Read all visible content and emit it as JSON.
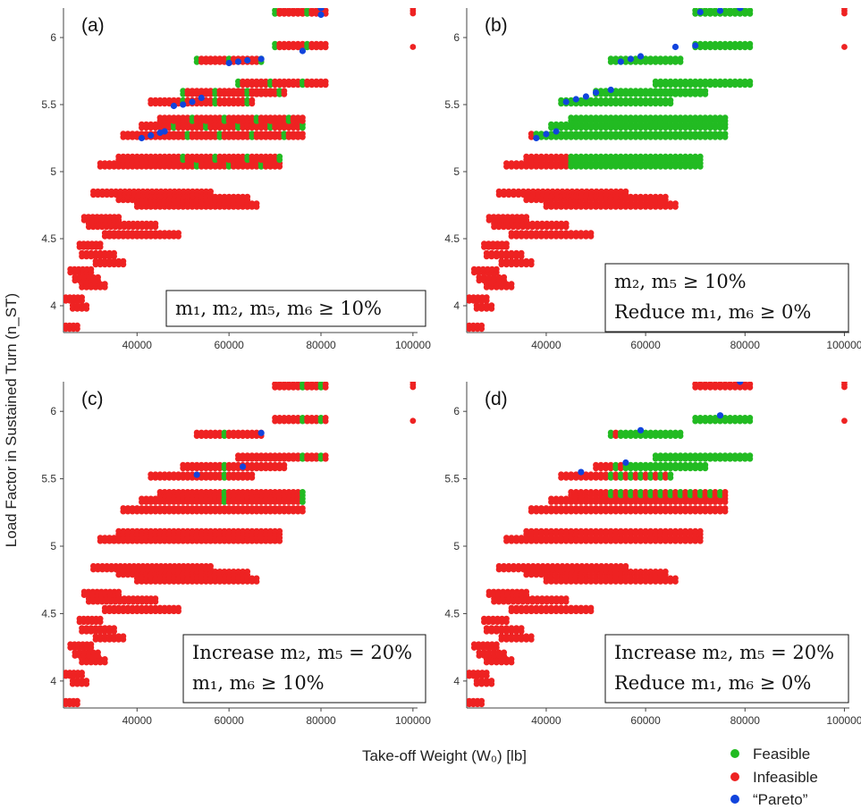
{
  "ylabel": "Load Factor in Sustained Turn (n_ST)",
  "xlabel": "Take-off Weight (W₀) [lb]",
  "legend": [
    {
      "label": "Feasible",
      "color": "#22bb22"
    },
    {
      "label": "Infeasible",
      "color": "#ee2222"
    },
    {
      "label": "“Pareto”",
      "color": "#1144dd"
    }
  ],
  "chart_data": [
    {
      "type": "scatter",
      "panel": "(a)",
      "annotation": [
        "m₁, m₂, m₅, m₆ ≥ 10%"
      ],
      "xlim": [
        24000,
        101000
      ],
      "ylim": [
        3.8,
        6.22
      ],
      "xticks": [
        40000,
        60000,
        80000,
        100000
      ],
      "yticks": [
        4,
        4.5,
        5,
        5.5,
        6
      ],
      "feasible_x_ranges": [
        [
          50000,
          72000
        ],
        [
          48000,
          72000
        ],
        [
          55000,
          76000
        ],
        [
          62000,
          72000
        ],
        [
          76000,
          80000
        ]
      ],
      "pareto": [
        [
          41000,
          5.25
        ],
        [
          43000,
          5.27
        ],
        [
          45000,
          5.29
        ],
        [
          46000,
          5.3
        ],
        [
          48000,
          5.49
        ],
        [
          50000,
          5.5
        ],
        [
          52000,
          5.52
        ],
        [
          54000,
          5.55
        ],
        [
          60000,
          5.81
        ],
        [
          62000,
          5.82
        ],
        [
          64000,
          5.83
        ],
        [
          67000,
          5.84
        ],
        [
          76000,
          5.9
        ],
        [
          80000,
          6.17
        ],
        [
          80000,
          6.22
        ]
      ]
    },
    {
      "type": "scatter",
      "panel": "(b)",
      "annotation": [
        "m₂, m₅ ≥ 10%",
        "Reduce m₁, m₆ ≥ 0%"
      ],
      "xlim": [
        24000,
        101000
      ],
      "ylim": [
        3.8,
        6.22
      ],
      "xticks": [
        40000,
        60000,
        80000,
        100000
      ],
      "yticks": [
        4,
        4.5,
        5,
        5.5,
        6
      ],
      "feasible_x_ranges": [
        [
          38000,
          77000
        ],
        [
          42000,
          77000
        ],
        [
          45000,
          80000
        ],
        [
          49000,
          80000
        ],
        [
          54000,
          80000
        ],
        [
          70000,
          81000
        ]
      ],
      "pareto": [
        [
          38000,
          5.25
        ],
        [
          40000,
          5.28
        ],
        [
          42000,
          5.3
        ],
        [
          44000,
          5.52
        ],
        [
          46000,
          5.54
        ],
        [
          48000,
          5.56
        ],
        [
          50000,
          5.59
        ],
        [
          53000,
          5.61
        ],
        [
          55000,
          5.82
        ],
        [
          57000,
          5.84
        ],
        [
          59000,
          5.86
        ],
        [
          66000,
          5.93
        ],
        [
          70000,
          5.94
        ],
        [
          71000,
          6.19
        ],
        [
          75000,
          6.2
        ],
        [
          79000,
          6.22
        ]
      ]
    },
    {
      "type": "scatter",
      "panel": "(c)",
      "annotation": [
        "Increase m₂, m₅ = 20%",
        "m₁, m₆ ≥ 10%"
      ],
      "xlim": [
        24000,
        101000
      ],
      "ylim": [
        3.8,
        6.22
      ],
      "xticks": [
        40000,
        60000,
        80000,
        100000
      ],
      "yticks": [
        4,
        4.5,
        5,
        5.5,
        6
      ],
      "feasible_x_ranges": [
        [
          59000,
          60000
        ],
        [
          76000,
          77000
        ],
        [
          80000,
          81000
        ]
      ],
      "pareto": [
        [
          53000,
          5.53
        ],
        [
          63000,
          5.59
        ],
        [
          67000,
          5.84
        ]
      ]
    },
    {
      "type": "scatter",
      "panel": "(d)",
      "annotation": [
        "Increase m₂, m₅ = 20%",
        "Reduce m₁, m₆ ≥ 0%"
      ],
      "xlim": [
        24000,
        101000
      ],
      "ylim": [
        3.8,
        6.22
      ],
      "xticks": [
        40000,
        60000,
        80000,
        100000
      ],
      "yticks": [
        4,
        4.5,
        5,
        5.5,
        6
      ],
      "feasible_x_ranges": [
        [
          47000,
          53000
        ],
        [
          53000,
          77000
        ],
        [
          56000,
          80000
        ],
        [
          59000,
          66000
        ],
        [
          75000,
          81000
        ]
      ],
      "pareto": [
        [
          47000,
          5.55
        ],
        [
          56000,
          5.62
        ],
        [
          59000,
          5.86
        ],
        [
          75000,
          5.97
        ],
        [
          79000,
          6.22
        ]
      ]
    }
  ],
  "infeasible_clusters": [
    {
      "y": 3.84,
      "x0": 24500,
      "x1": 27000
    },
    {
      "y": 3.99,
      "x0": 26000,
      "x1": 29000
    },
    {
      "y": 4.05,
      "x0": 24500,
      "x1": 28000
    },
    {
      "y": 4.15,
      "x0": 28000,
      "x1": 33000
    },
    {
      "y": 4.2,
      "x0": 26500,
      "x1": 31500
    },
    {
      "y": 4.26,
      "x0": 25500,
      "x1": 30000
    },
    {
      "y": 4.32,
      "x0": 31000,
      "x1": 37000
    },
    {
      "y": 4.38,
      "x0": 28000,
      "x1": 35000
    },
    {
      "y": 4.45,
      "x0": 27500,
      "x1": 32000
    },
    {
      "y": 4.53,
      "x0": 33000,
      "x1": 49000
    },
    {
      "y": 4.6,
      "x0": 29500,
      "x1": 44000
    },
    {
      "y": 4.65,
      "x0": 28500,
      "x1": 36000
    },
    {
      "y": 4.75,
      "x0": 40000,
      "x1": 66000
    },
    {
      "y": 4.8,
      "x0": 36000,
      "x1": 64000
    },
    {
      "y": 4.84,
      "x0": 30500,
      "x1": 56000
    },
    {
      "y": 5.05,
      "x0": 32000,
      "x1": 71000
    },
    {
      "y": 5.1,
      "x0": 36000,
      "x1": 71000
    },
    {
      "y": 5.27,
      "x0": 37000,
      "x1": 76000
    },
    {
      "y": 5.34,
      "x0": 41000,
      "x1": 76000
    },
    {
      "y": 5.39,
      "x0": 45000,
      "x1": 76000
    },
    {
      "y": 5.52,
      "x0": 43000,
      "x1": 65000
    },
    {
      "y": 5.59,
      "x0": 50000,
      "x1": 72000
    },
    {
      "y": 5.66,
      "x0": 62000,
      "x1": 81000
    },
    {
      "y": 5.83,
      "x0": 53000,
      "x1": 67000
    },
    {
      "y": 5.94,
      "x0": 70000,
      "x1": 81000
    },
    {
      "y": 6.19,
      "x0": 70000,
      "x1": 81000
    }
  ],
  "infeasible_points": [
    [
      100000,
      6.2
    ],
    [
      100000,
      6.18
    ],
    [
      100000,
      6.22
    ],
    [
      100000,
      5.93
    ]
  ]
}
